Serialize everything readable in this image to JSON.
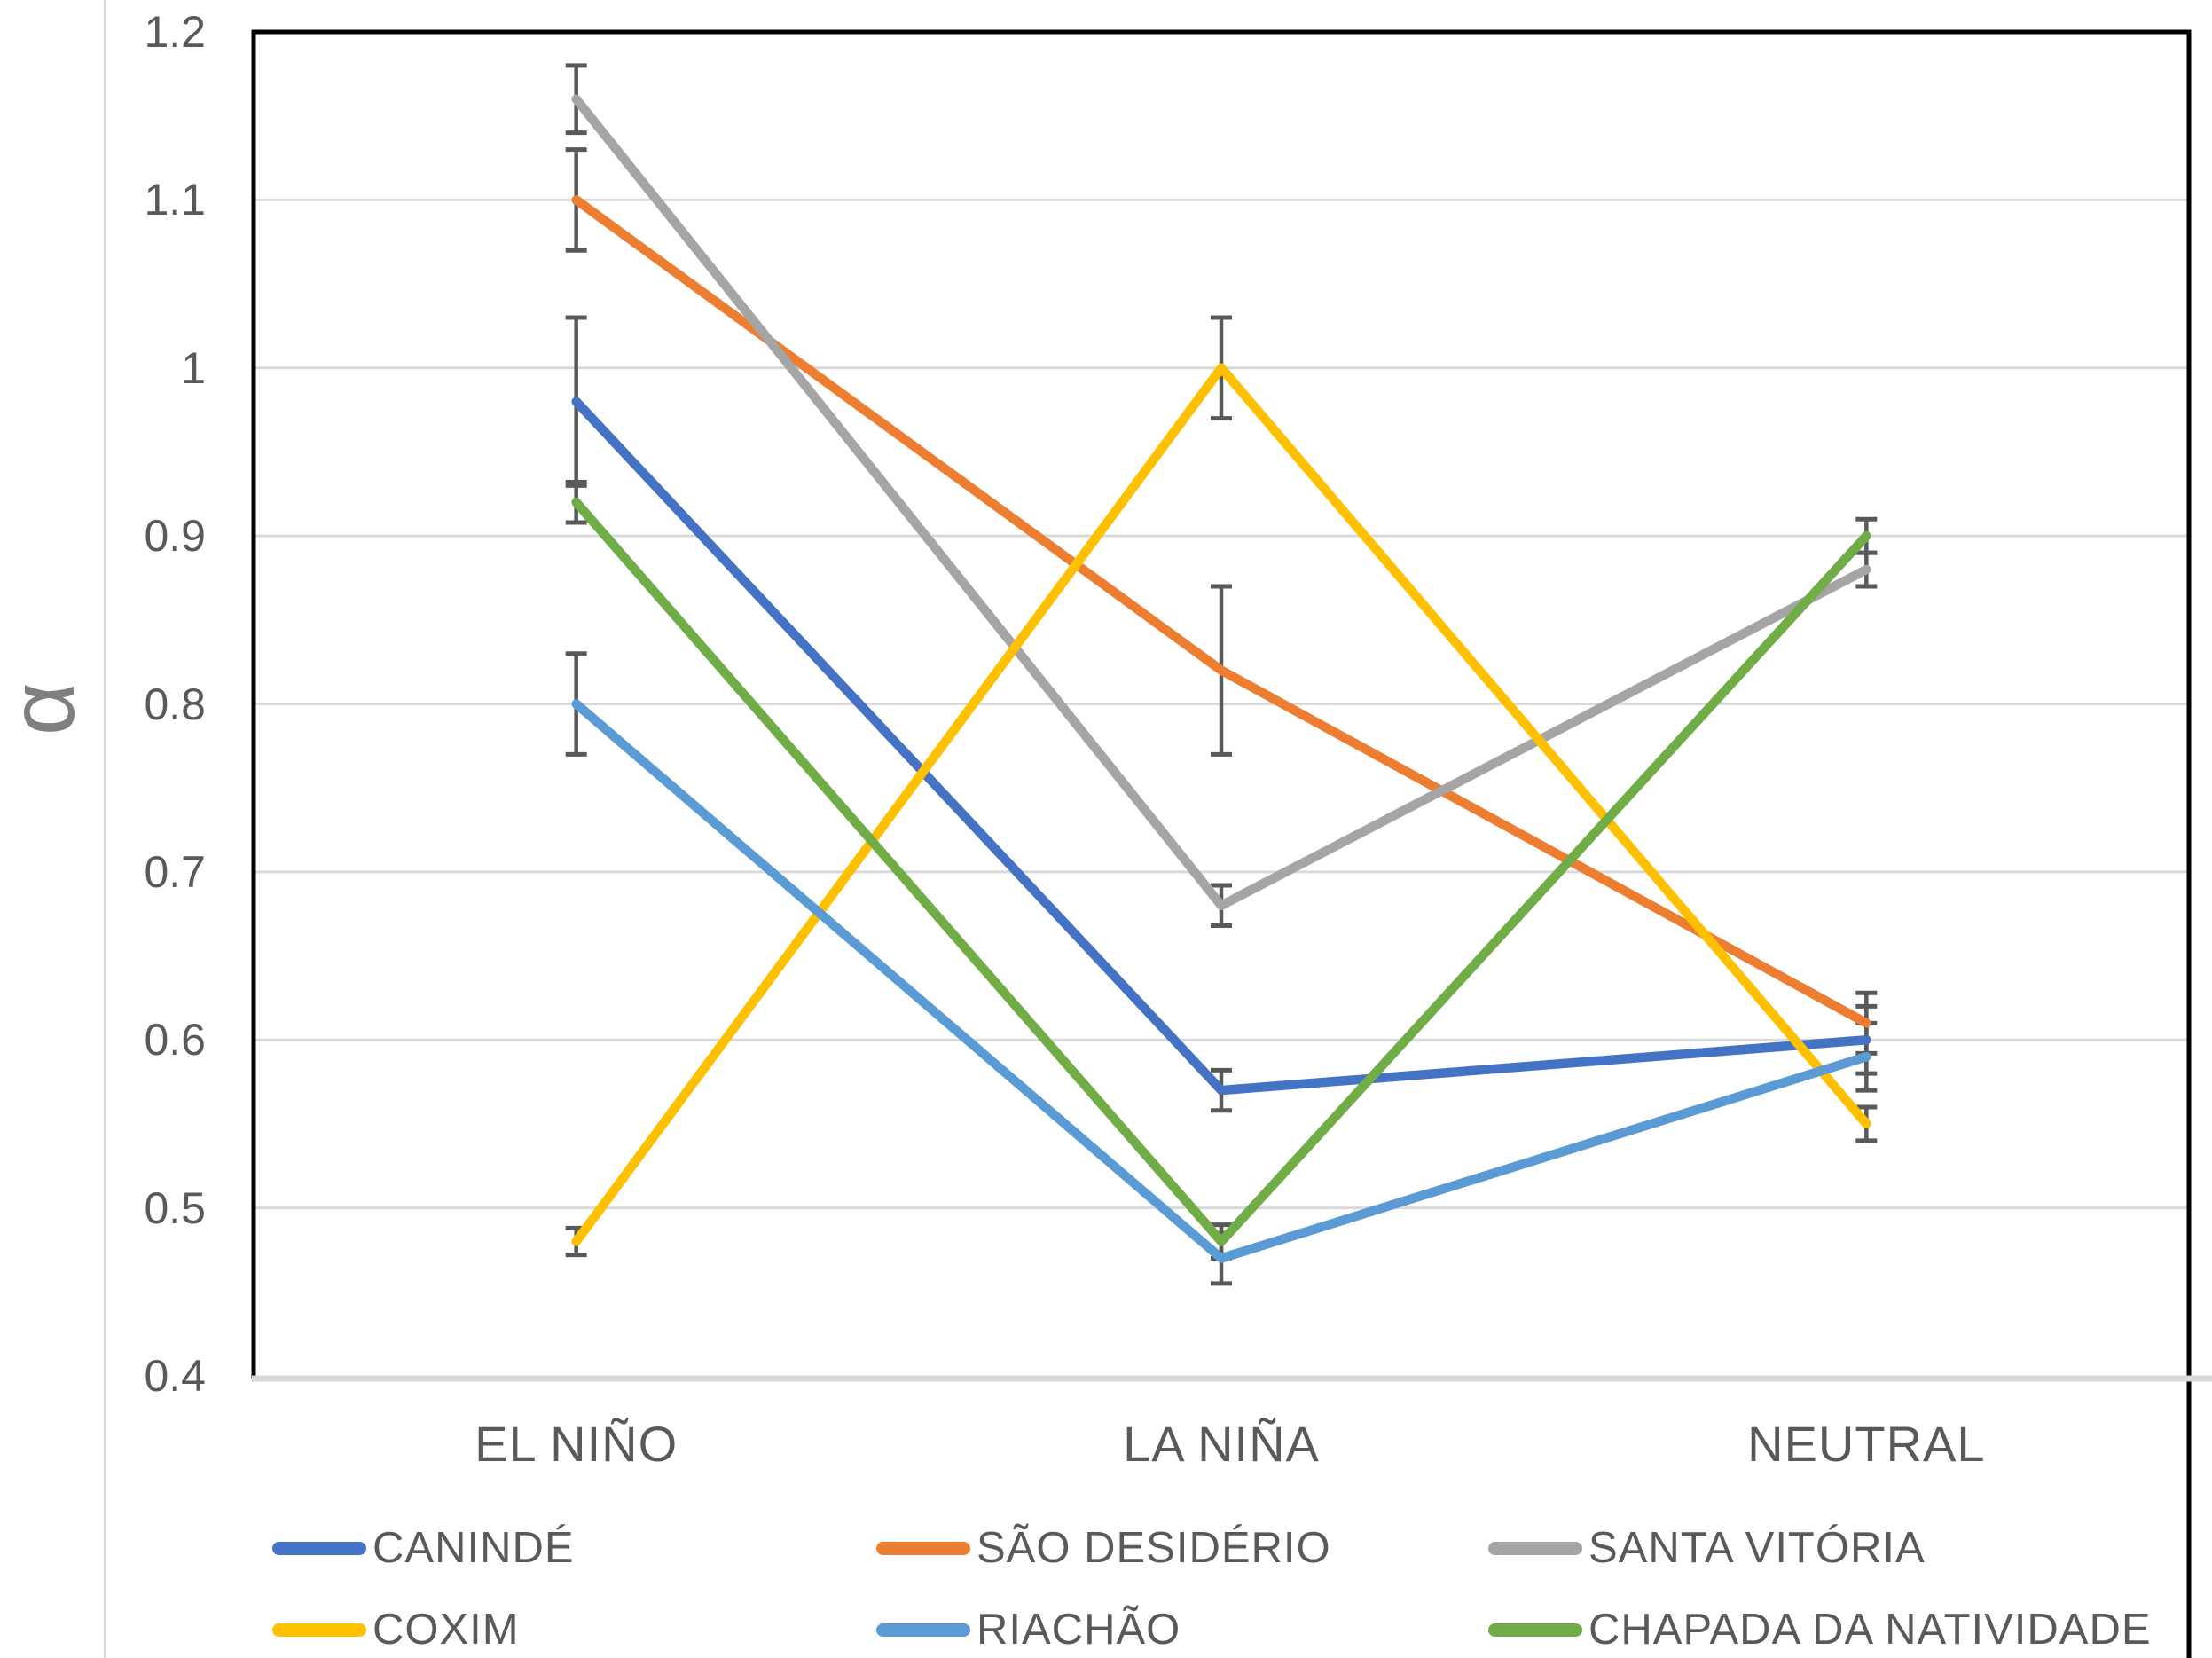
{
  "chart_data": {
    "type": "line",
    "title": "",
    "ylabel": "α",
    "xlabel": "",
    "categories": [
      "EL NIÑO",
      "LA NIÑA",
      "NEUTRAL"
    ],
    "series": [
      {
        "name": "CANINDÉ",
        "color": "#4472C4",
        "values": [
          0.98,
          0.57,
          0.6
        ],
        "errors": [
          0.05,
          0.012,
          0.02
        ]
      },
      {
        "name": "SÃO DESIDÉRIO",
        "color": "#ED7D31",
        "values": [
          1.1,
          0.82,
          0.61
        ],
        "errors": [
          0.03,
          0.05,
          0.018
        ]
      },
      {
        "name": "SANTA VITÓRIA",
        "color": "#A5A5A5",
        "values": [
          1.16,
          0.68,
          0.88
        ],
        "errors": [
          0.02,
          0.012,
          0.01
        ]
      },
      {
        "name": "COXIM",
        "color": "#FFC000",
        "values": [
          0.48,
          1.0,
          0.55
        ],
        "errors": [
          0.008,
          0.03,
          0.01
        ]
      },
      {
        "name": "RIACHÃO",
        "color": "#5B9BD5",
        "values": [
          0.8,
          0.47,
          0.59
        ],
        "errors": [
          0.03,
          0.015,
          0.02
        ]
      },
      {
        "name": "CHAPADA DA NATIVIDADE",
        "color": "#70AD47",
        "values": [
          0.92,
          0.48,
          0.9
        ],
        "errors": [
          0.012,
          0.01,
          0.01
        ]
      }
    ],
    "ylim": [
      0.4,
      1.2
    ],
    "yticks": [
      0.4,
      0.5,
      0.6,
      0.7,
      0.8,
      0.9,
      1,
      1.1,
      1.2
    ],
    "ytick_labels": [
      "0.4",
      "0.5",
      "0.6",
      "0.7",
      "0.8",
      "0.9",
      "1",
      "1.1",
      "1.2"
    ],
    "grid": true,
    "legend_position": "bottom",
    "colors": {
      "gridline": "#d9d9d9",
      "plot_border": "#000000",
      "bottom_axis": "#d9d9d9",
      "error_bar": "#595959",
      "tick_text": "#595959",
      "axis_title_text": "#7f7f7f"
    }
  }
}
